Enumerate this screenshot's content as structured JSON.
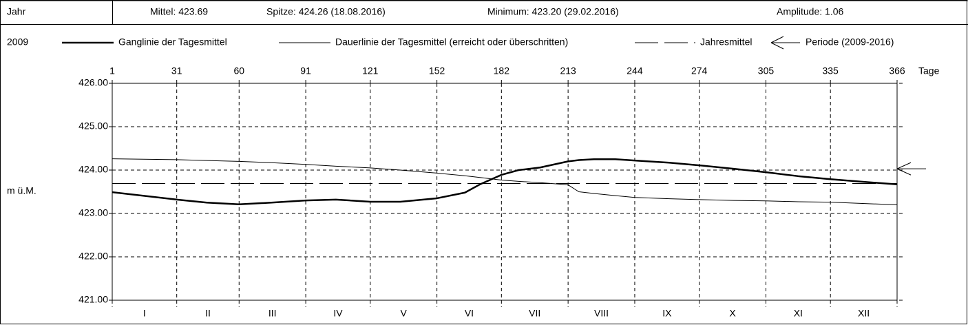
{
  "header": {
    "row_label": "Jahr",
    "mean": "Mittel: 423.69",
    "peak": "Spitze: 424.26 (18.08.2016)",
    "minimum": "Minimum: 423.20 (29.02.2016)",
    "amplitude": "Amplitude: 1.06"
  },
  "chart_data": {
    "type": "line",
    "year": "2009",
    "xlabel": "Tage",
    "ylabel": "m ü.M.",
    "x": [
      1,
      31,
      45,
      60,
      75,
      91,
      105,
      121,
      135,
      152,
      165,
      172,
      182,
      190,
      200,
      213,
      218,
      225,
      235,
      244,
      260,
      274,
      290,
      305,
      320,
      335,
      350,
      366
    ],
    "series": [
      {
        "name": "Ganglinie der Tagesmittel",
        "color": "#000000",
        "width": "thick",
        "values": [
          423.49,
          423.32,
          423.25,
          423.21,
          423.25,
          423.3,
          423.32,
          423.27,
          423.27,
          423.35,
          423.48,
          423.67,
          423.89,
          424.0,
          424.06,
          424.2,
          424.23,
          424.25,
          424.25,
          424.22,
          424.17,
          424.11,
          424.03,
          423.95,
          423.86,
          423.79,
          423.73,
          423.67
        ]
      },
      {
        "name": "Dauerlinie der Tagesmittel (erreicht oder überschritten)",
        "color": "#000000",
        "width": "thin",
        "values": [
          424.26,
          424.24,
          424.22,
          424.2,
          424.17,
          424.13,
          424.09,
          424.05,
          424.0,
          423.93,
          423.87,
          423.83,
          423.77,
          423.74,
          423.71,
          423.66,
          423.5,
          423.46,
          423.41,
          423.37,
          423.34,
          423.32,
          423.3,
          423.29,
          423.27,
          423.26,
          423.23,
          423.2
        ]
      }
    ],
    "mean_line": {
      "name": "Jahresmittel",
      "value": 423.69,
      "color": "#000000"
    },
    "period_mean": {
      "name": "Periode (2009-2016)",
      "value": 424.03,
      "color": "#000000"
    },
    "xlim": [
      1,
      366
    ],
    "xticks": [
      1,
      31,
      60,
      91,
      121,
      152,
      182,
      213,
      244,
      274,
      305,
      335,
      366
    ],
    "categories": [
      "I",
      "II",
      "III",
      "IV",
      "V",
      "VI",
      "VII",
      "VIII",
      "IX",
      "X",
      "XI",
      "XII"
    ],
    "ylim": [
      421,
      426
    ],
    "yticks": [
      {
        "value": 421,
        "label": "421.00"
      },
      {
        "value": 422,
        "label": "422.00"
      },
      {
        "value": 423,
        "label": "423.00"
      },
      {
        "value": 424,
        "label": "424.00"
      },
      {
        "value": 425,
        "label": "425.00"
      },
      {
        "value": 426,
        "label": "426.00"
      }
    ],
    "grid": true
  }
}
